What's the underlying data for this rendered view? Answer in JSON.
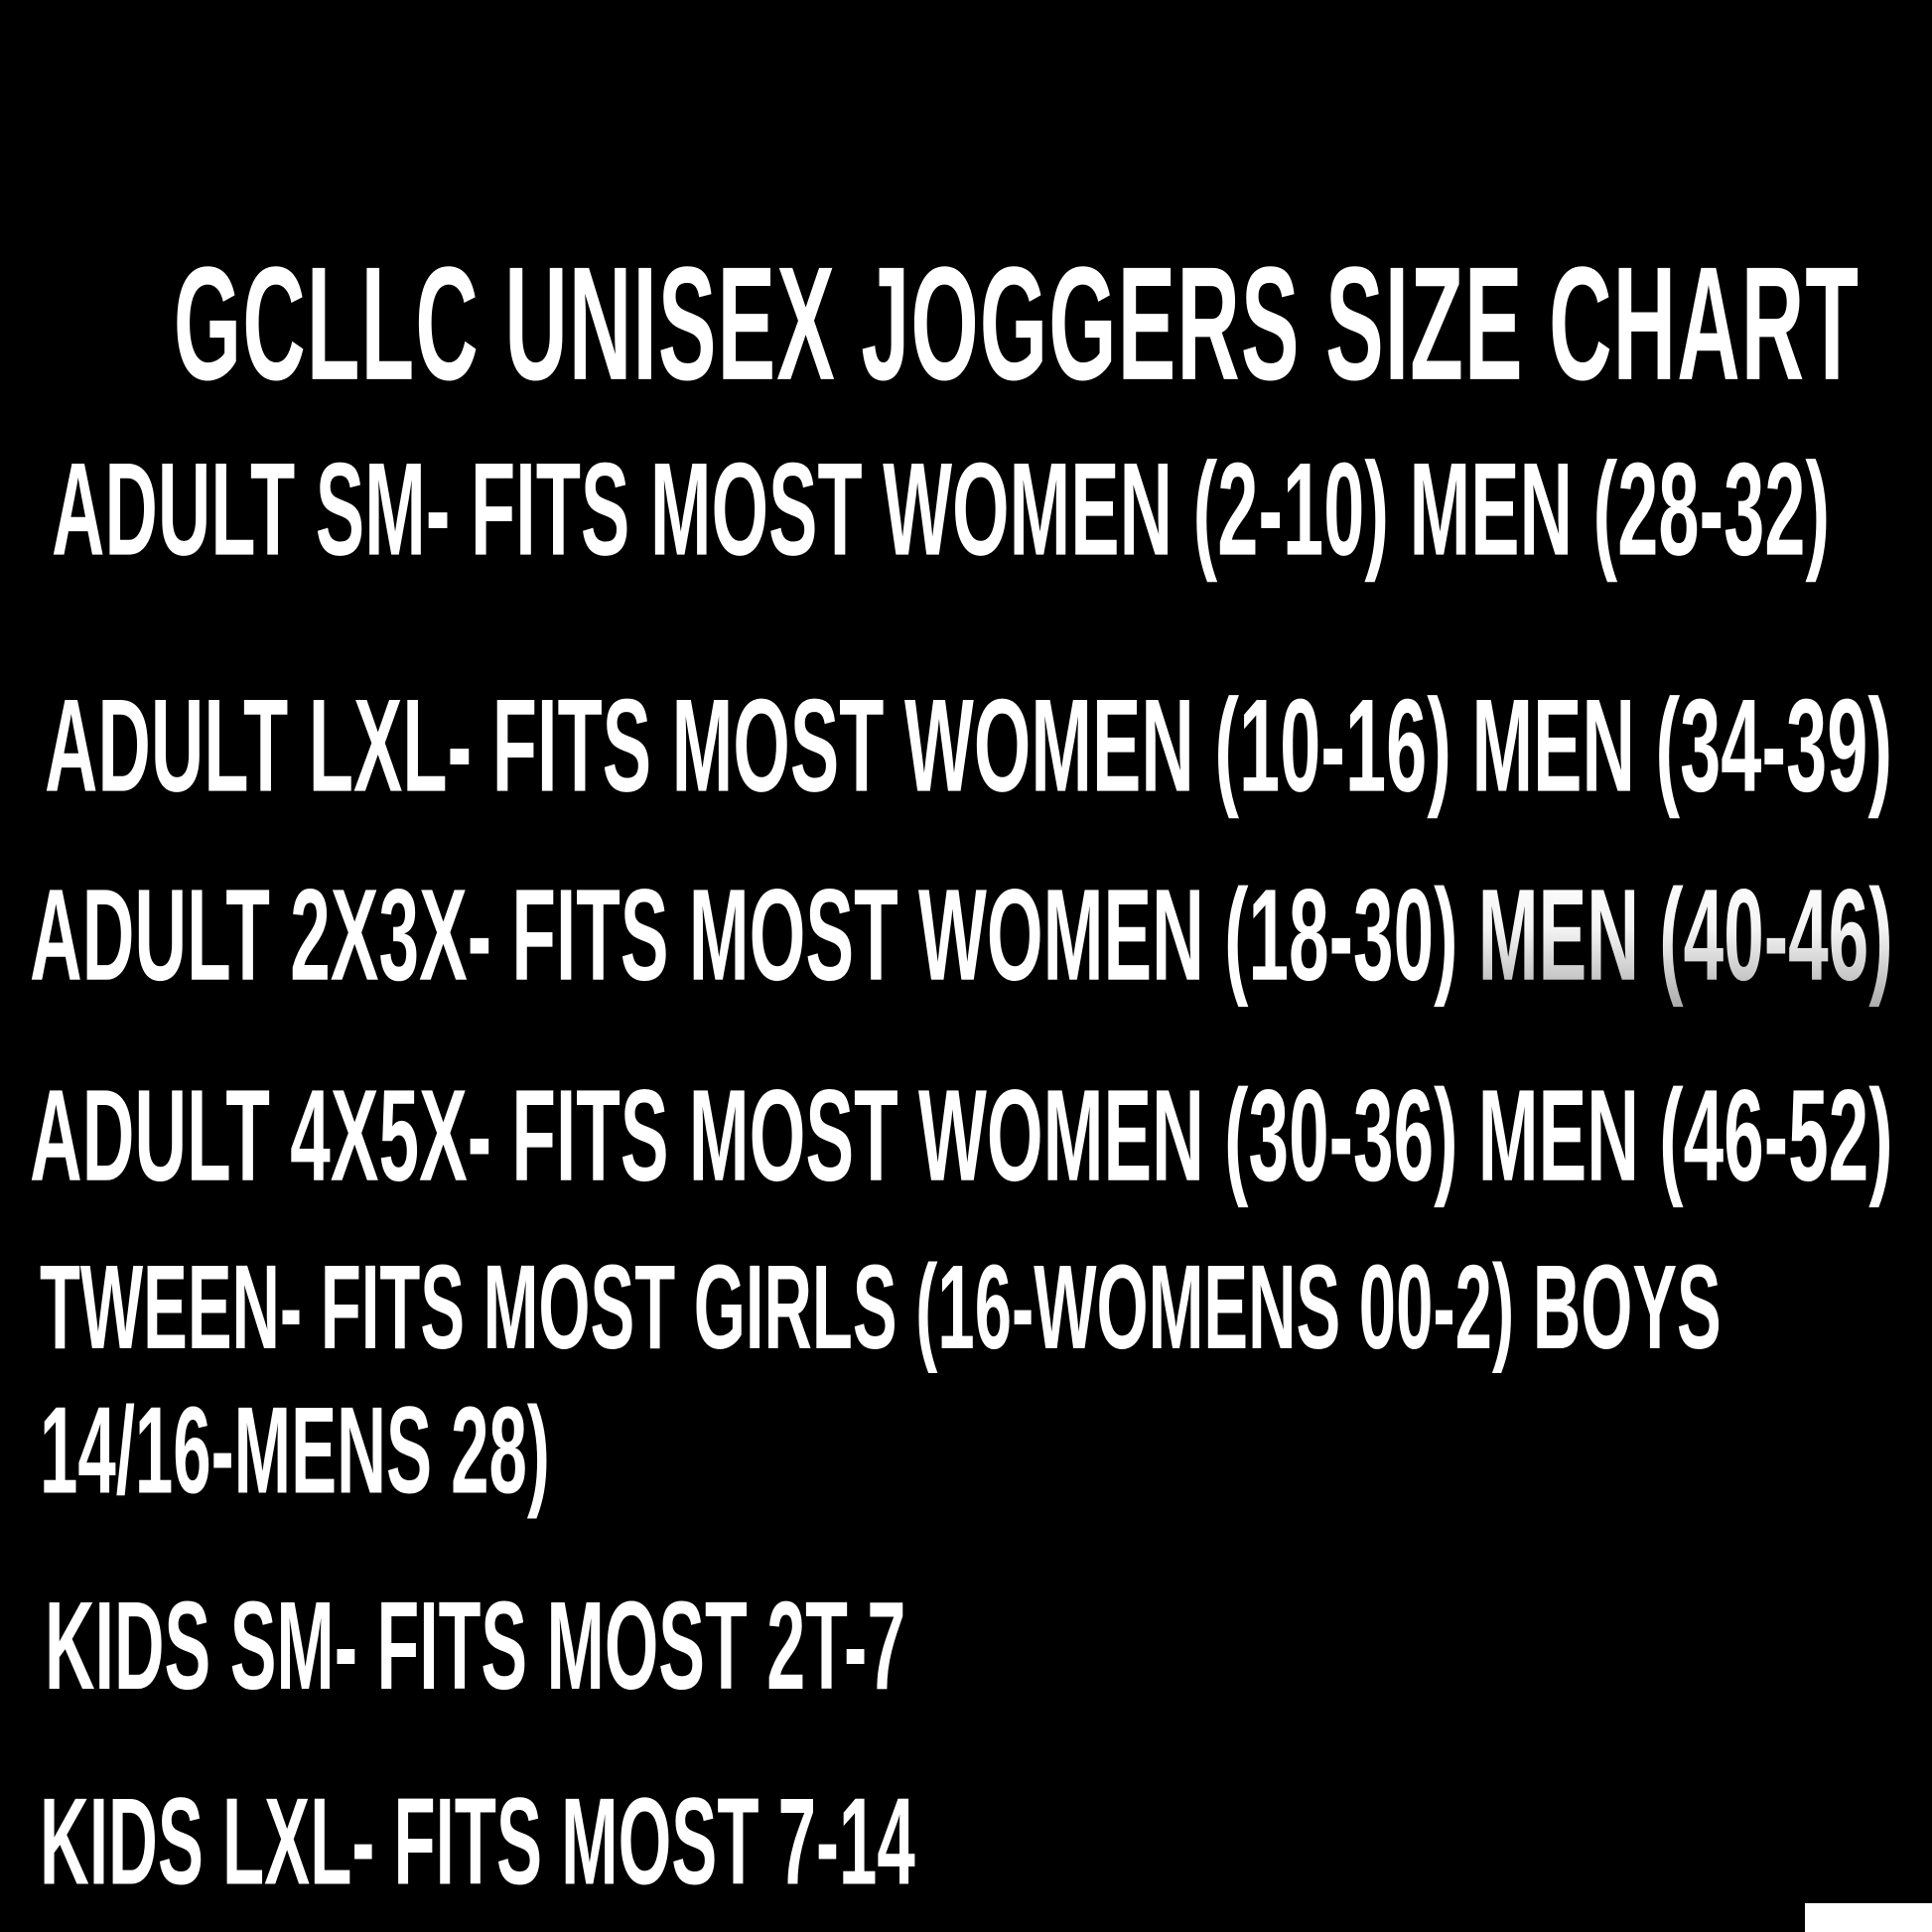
{
  "poster": {
    "background_color": "#000000",
    "text_color": "#ffffff",
    "faded_text_bottom_color": "#ababab",
    "title": "GCLLC UNISEX JOGGERS SIZE CHART",
    "rows": [
      {
        "text": "ADULT SM- FITS MOST WOMEN (2-10) MEN (28-32)"
      },
      {
        "text": "ADULT LXL- FITS MOST WOMEN (10-16) MEN (34-39)"
      },
      {
        "text": "ADULT 2X3X- FITS MOST WOMEN (18-30)",
        "faded_text": " MEN (40-46)"
      },
      {
        "text": "ADULT 4X5X- FITS MOST WOMEN (30-36) MEN (46-52)"
      },
      {
        "text": "TWEEN- FITS MOST GIRLS (16-WOMENS 00-2) BOYS"
      },
      {
        "text": "14/16-MENS 28)"
      },
      {
        "text": "KIDS SM- FITS MOST 2T-7"
      },
      {
        "text": "KIDS LXL- FITS MOST 7-14"
      }
    ],
    "corner_patch_color": "#ffffff"
  }
}
